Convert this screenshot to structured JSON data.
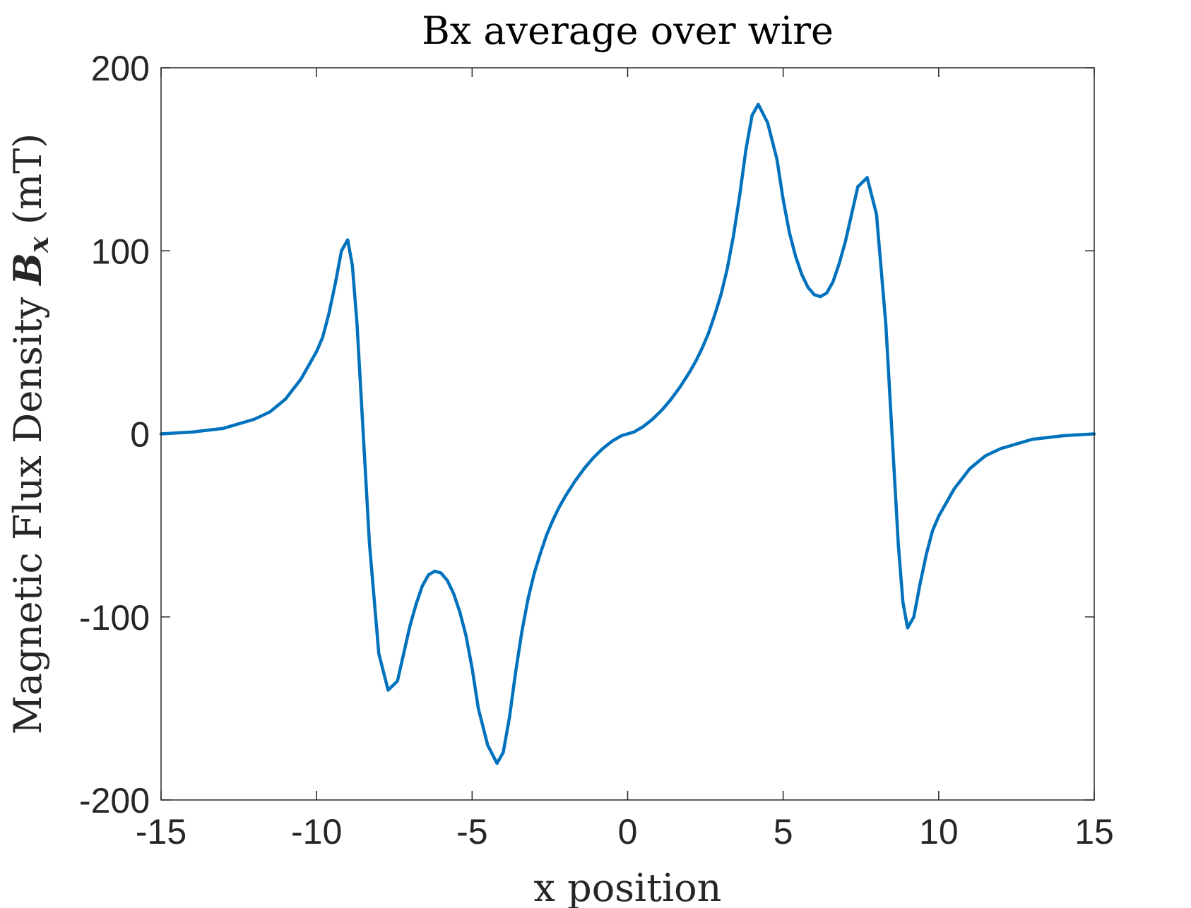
{
  "chart_data": {
    "type": "line",
    "title": "Bx average over wire",
    "xlabel": "x position",
    "ylabel": {
      "prefix": "Magnetic Flux Density ",
      "symbol": "B",
      "subscript": "x",
      "suffix": " (mT)"
    },
    "xlim": [
      -15,
      15
    ],
    "ylim": [
      -200,
      200
    ],
    "grid": false,
    "xticks": [
      -15,
      -10,
      -5,
      0,
      5,
      10,
      15
    ],
    "yticks": [
      -200,
      -100,
      0,
      100,
      200
    ],
    "xtick_labels": [
      "-15",
      "-10",
      "-5",
      "0",
      "5",
      "10",
      "15"
    ],
    "ytick_labels": [
      "-200",
      "-100",
      "0",
      "100",
      "200"
    ],
    "series": [
      {
        "color": "#0072BD",
        "x": [
          -15,
          -14,
          -13,
          -12,
          -11.5,
          -11,
          -10.5,
          -10,
          -9.8,
          -9.6,
          -9.4,
          -9.2,
          -9.0,
          -8.85,
          -8.7,
          -8.5,
          -8.3,
          -8.0,
          -7.7,
          -7.4,
          -7.2,
          -7.0,
          -6.8,
          -6.6,
          -6.4,
          -6.2,
          -6.0,
          -5.8,
          -5.6,
          -5.4,
          -5.2,
          -5.0,
          -4.8,
          -4.5,
          -4.2,
          -4.0,
          -3.8,
          -3.6,
          -3.4,
          -3.2,
          -3.0,
          -2.8,
          -2.6,
          -2.4,
          -2.2,
          -2.0,
          -1.7,
          -1.4,
          -1.1,
          -0.8,
          -0.5,
          -0.2,
          0,
          0.2,
          0.5,
          0.8,
          1.1,
          1.4,
          1.7,
          2.0,
          2.2,
          2.4,
          2.6,
          2.8,
          3.0,
          3.2,
          3.4,
          3.6,
          3.8,
          4.0,
          4.2,
          4.5,
          4.8,
          5.0,
          5.2,
          5.4,
          5.6,
          5.8,
          6.0,
          6.2,
          6.4,
          6.6,
          6.8,
          7.0,
          7.2,
          7.4,
          7.7,
          8.0,
          8.3,
          8.5,
          8.7,
          8.85,
          9.0,
          9.2,
          9.4,
          9.6,
          9.8,
          10.0,
          10.5,
          11.0,
          11.5,
          12.0,
          13.0,
          14.0,
          15.0
        ],
        "y": [
          0,
          1,
          3,
          8,
          12,
          19,
          30,
          45,
          53,
          66,
          82,
          100,
          106,
          92,
          60,
          0,
          -60,
          -120,
          -140,
          -135,
          -120,
          -105,
          -93,
          -83,
          -77,
          -75,
          -76,
          -80,
          -87,
          -97,
          -110,
          -128,
          -150,
          -170,
          -180,
          -174,
          -155,
          -130,
          -108,
          -90,
          -76,
          -65,
          -55,
          -47,
          -40,
          -34,
          -26,
          -19,
          -13,
          -8,
          -4,
          -1,
          0,
          1,
          4,
          8,
          13,
          19,
          26,
          34,
          40,
          47,
          55,
          65,
          76,
          90,
          108,
          130,
          155,
          174,
          180,
          170,
          150,
          128,
          110,
          97,
          87,
          80,
          76,
          75,
          77,
          83,
          93,
          105,
          120,
          135,
          140,
          120,
          60,
          0,
          -60,
          -92,
          -106,
          -100,
          -82,
          -66,
          -53,
          -45,
          -30,
          -19,
          -12,
          -8,
          -3,
          -1,
          0
        ]
      }
    ]
  }
}
